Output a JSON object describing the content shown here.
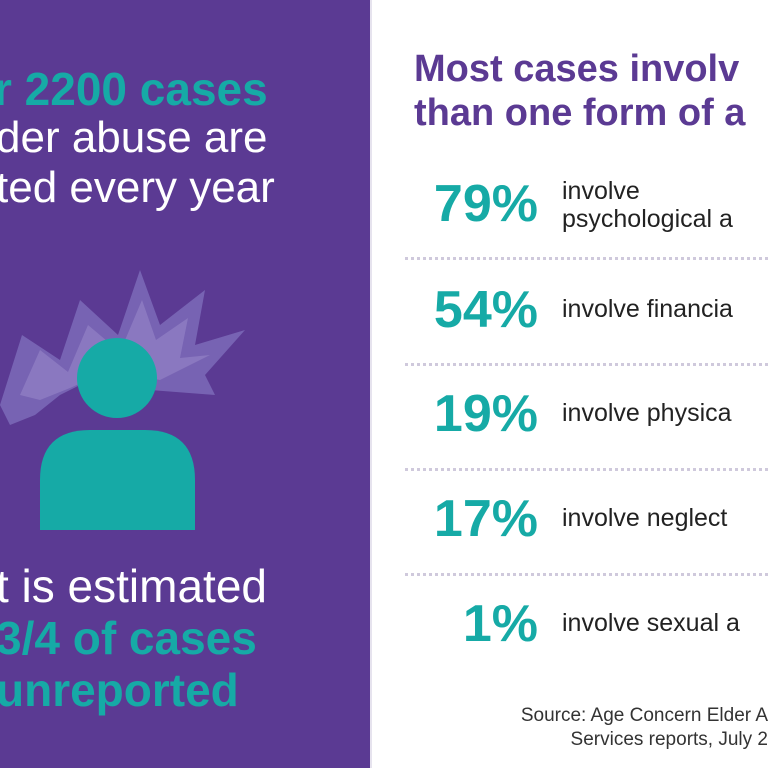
{
  "left_panel": {
    "top_lines": [
      {
        "text": "r 2200 cases",
        "style": "teal"
      },
      {
        "text": "der abuse are",
        "style": "white"
      },
      {
        "text": "ted every year",
        "style": "white"
      }
    ],
    "bottom_lines": [
      {
        "text": "t is estimated",
        "style": "white"
      },
      {
        "text": "3/4 of cases",
        "style": "teal"
      },
      {
        "text": "unreported",
        "style": "teal"
      }
    ],
    "colors": {
      "background": "#5b3a93",
      "accent": "#16aaa6",
      "burst": "#7d6bb8"
    },
    "icons": {
      "figure": "person-icon",
      "burst": "impact-burst-icon"
    }
  },
  "right_panel": {
    "headline": [
      "Most cases involv",
      "than one form of a"
    ],
    "stats": [
      {
        "percent": "79%",
        "lines": [
          "involve",
          "psychological a"
        ]
      },
      {
        "percent": "54%",
        "lines": [
          "involve financia"
        ]
      },
      {
        "percent": "19%",
        "lines": [
          "involve physica"
        ]
      },
      {
        "percent": "17%",
        "lines": [
          "involve neglect"
        ]
      },
      {
        "percent": "1%",
        "lines": [
          "involve sexual a"
        ]
      }
    ],
    "source": [
      "Source: Age Concern Elder A",
      "Services reports, July 2"
    ]
  }
}
